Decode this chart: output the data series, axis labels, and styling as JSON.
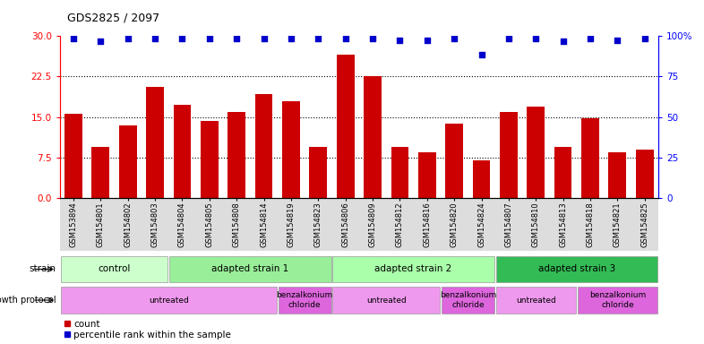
{
  "title": "GDS2825 / 2097",
  "samples": [
    "GSM153894",
    "GSM154801",
    "GSM154802",
    "GSM154803",
    "GSM154804",
    "GSM154805",
    "GSM154808",
    "GSM154814",
    "GSM154819",
    "GSM154823",
    "GSM154806",
    "GSM154809",
    "GSM154812",
    "GSM154816",
    "GSM154820",
    "GSM154824",
    "GSM154807",
    "GSM154810",
    "GSM154813",
    "GSM154818",
    "GSM154821",
    "GSM154825"
  ],
  "bar_values": [
    15.6,
    9.5,
    13.5,
    20.5,
    17.2,
    14.2,
    16.0,
    19.3,
    18.0,
    9.5,
    26.5,
    22.5,
    9.5,
    8.5,
    13.7,
    7.0,
    16.0,
    17.0,
    9.5,
    14.8,
    8.5,
    9.0
  ],
  "dot_values": [
    29.5,
    29.0,
    29.5,
    29.5,
    29.5,
    29.5,
    29.5,
    29.5,
    29.5,
    29.5,
    29.5,
    29.5,
    29.3,
    29.3,
    29.5,
    26.5,
    29.5,
    29.5,
    29.0,
    29.5,
    29.3,
    29.5
  ],
  "bar_color": "#cc0000",
  "dot_color": "#0000cc",
  "ylim": [
    0,
    30
  ],
  "yticks": [
    0,
    7.5,
    15,
    22.5,
    30
  ],
  "y2ticks": [
    0,
    25,
    50,
    75,
    100
  ],
  "y2labels": [
    "0",
    "25",
    "50",
    "75",
    "100%"
  ],
  "strain_groups": [
    {
      "label": "control",
      "start": 0,
      "end": 4,
      "color": "#ccffcc"
    },
    {
      "label": "adapted strain 1",
      "start": 4,
      "end": 10,
      "color": "#99ee99"
    },
    {
      "label": "adapted strain 2",
      "start": 10,
      "end": 16,
      "color": "#aaffaa"
    },
    {
      "label": "adapted strain 3",
      "start": 16,
      "end": 22,
      "color": "#33bb55"
    }
  ],
  "protocol_groups": [
    {
      "label": "untreated",
      "start": 0,
      "end": 8,
      "color": "#ee99ee"
    },
    {
      "label": "benzalkonium\nchloride",
      "start": 8,
      "end": 10,
      "color": "#dd66dd"
    },
    {
      "label": "untreated",
      "start": 10,
      "end": 14,
      "color": "#ee99ee"
    },
    {
      "label": "benzalkonium\nchloride",
      "start": 14,
      "end": 16,
      "color": "#dd66dd"
    },
    {
      "label": "untreated",
      "start": 16,
      "end": 19,
      "color": "#ee99ee"
    },
    {
      "label": "benzalkonium\nchloride",
      "start": 19,
      "end": 22,
      "color": "#dd66dd"
    }
  ],
  "xtick_bg_color": "#dddddd",
  "fig_width": 7.86,
  "fig_height": 3.84,
  "dpi": 100
}
